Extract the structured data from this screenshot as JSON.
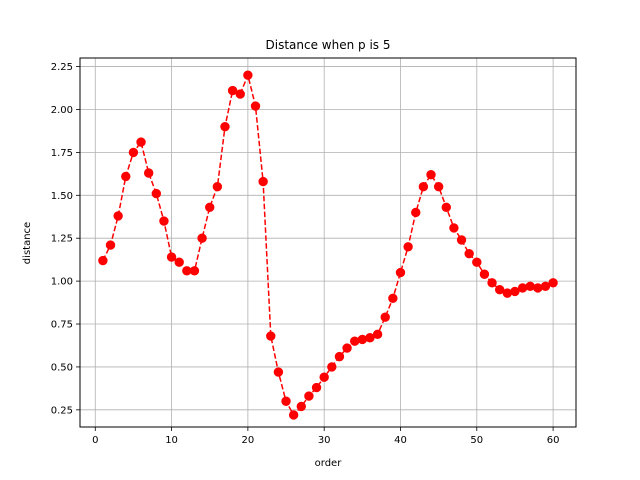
{
  "chart_data": {
    "type": "line",
    "title": "Distance when p is 5",
    "xlabel": "order",
    "ylabel": "distance",
    "xlim": [
      -2.0,
      63.0
    ],
    "ylim": [
      0.15,
      2.3
    ],
    "xticks": [
      0,
      10,
      20,
      30,
      40,
      50,
      60
    ],
    "xtick_labels": [
      "0",
      "10",
      "20",
      "30",
      "40",
      "50",
      "60"
    ],
    "yticks": [
      0.25,
      0.5,
      0.75,
      1.0,
      1.25,
      1.5,
      1.75,
      2.0,
      2.25
    ],
    "ytick_labels": [
      "0.25",
      "0.50",
      "0.75",
      "1.00",
      "1.25",
      "1.50",
      "1.75",
      "2.00",
      "2.25"
    ],
    "grid": true,
    "series": [
      {
        "color": "#ff0000",
        "line_style": "dashed",
        "marker": "circle",
        "x": [
          1,
          2,
          3,
          4,
          5,
          6,
          7,
          8,
          9,
          10,
          11,
          12,
          13,
          14,
          15,
          16,
          17,
          18,
          19,
          20,
          21,
          22,
          23,
          24,
          25,
          26,
          27,
          28,
          29,
          30,
          31,
          32,
          33,
          34,
          35,
          36,
          37,
          38,
          39,
          40,
          41,
          42,
          43,
          44,
          45,
          46,
          47,
          48,
          49,
          50,
          51,
          52,
          53,
          54,
          55,
          56,
          57,
          58,
          59,
          60
        ],
        "values": [
          1.12,
          1.21,
          1.38,
          1.61,
          1.75,
          1.81,
          1.63,
          1.51,
          1.35,
          1.14,
          1.11,
          1.06,
          1.06,
          1.25,
          1.43,
          1.55,
          1.9,
          2.11,
          2.09,
          2.2,
          2.02,
          1.58,
          0.68,
          0.47,
          0.3,
          0.22,
          0.27,
          0.33,
          0.38,
          0.44,
          0.5,
          0.56,
          0.61,
          0.65,
          0.66,
          0.67,
          0.69,
          0.79,
          0.9,
          1.05,
          1.2,
          1.4,
          1.55,
          1.62,
          1.55,
          1.43,
          1.31,
          1.24,
          1.16,
          1.11,
          1.04,
          0.99,
          0.95,
          0.93,
          0.94,
          0.96,
          0.97,
          0.96,
          0.97,
          0.99
        ]
      }
    ]
  }
}
